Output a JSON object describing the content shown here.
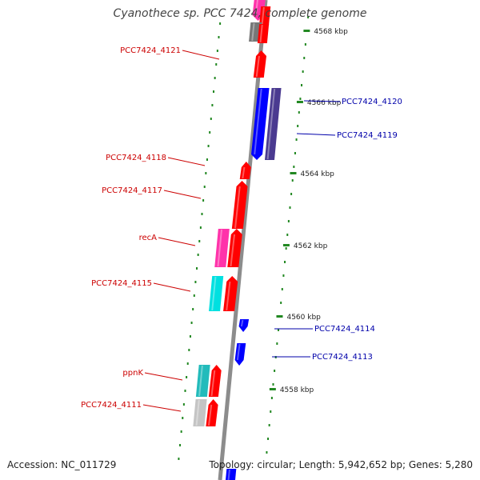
{
  "header": {
    "title": "Cyanothece sp. PCC 7424, complete genome"
  },
  "footer": {
    "accession": "Accession: NC_011729",
    "summary": "Topology: circular; Length: 5,942,652 bp; Genes: 5,280"
  },
  "colors": {
    "forward_gene": "#ff0000",
    "reverse_gene": "#0000ff",
    "forward_label": "#cc0000",
    "reverse_label": "#0000aa",
    "backbone": "#8c8c8c",
    "tick": "#228822",
    "magenta": "#ff33aa",
    "cyan": "#00e0e0",
    "teal": "#22bbbb",
    "gray": "#777777",
    "lightgray": "#c4c4c4",
    "navy": "#4a3a90"
  },
  "scale_labels": [
    {
      "kbp": 4568,
      "text": "4568 kbp"
    },
    {
      "kbp": 4566,
      "text": "4566 kbp"
    },
    {
      "kbp": 4564,
      "text": "4564 kbp"
    },
    {
      "kbp": 4562,
      "text": "4562 kbp"
    },
    {
      "kbp": 4560,
      "text": "4560 kbp"
    },
    {
      "kbp": 4558,
      "text": "4558 kbp"
    }
  ],
  "gene_labels": [
    {
      "text": "PCC7424_4121",
      "strand": "forward"
    },
    {
      "text": "PCC7424_4120",
      "strand": "reverse"
    },
    {
      "text": "PCC7424_4119",
      "strand": "reverse"
    },
    {
      "text": "PCC7424_4118",
      "strand": "forward"
    },
    {
      "text": "PCC7424_4117",
      "strand": "forward"
    },
    {
      "text": "recA",
      "strand": "forward"
    },
    {
      "text": "PCC7424_4115",
      "strand": "forward"
    },
    {
      "text": "PCC7424_4114",
      "strand": "reverse"
    },
    {
      "text": "PCC7424_4113",
      "strand": "reverse"
    },
    {
      "text": "ppnK",
      "strand": "forward"
    },
    {
      "text": "PCC7424_4111",
      "strand": "forward"
    }
  ]
}
